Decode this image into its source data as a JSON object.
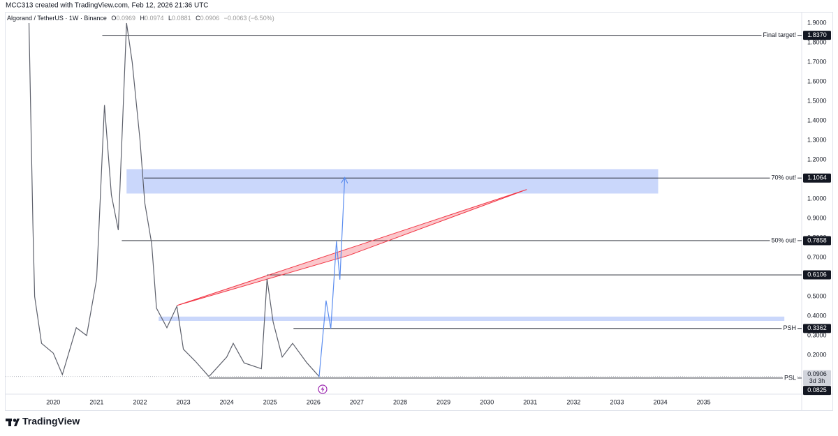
{
  "header": "MCC313 created with TradingView.com, Feb 12, 2026 21:36 UTC",
  "brand": "TradingView",
  "legend": {
    "symbol": "Algorand / TetherUS · 1W · Binance",
    "ohlc_labels": [
      "O",
      "H",
      "L",
      "C"
    ],
    "ohlc_values": [
      "0.0969",
      "0.0974",
      "0.0881",
      "0.0906"
    ],
    "change": "−0.0063 (−6.50%)"
  },
  "chart_data": {
    "type": "line",
    "xlim": [
      2018.9,
      2037.26
    ],
    "ylim": [
      0,
      1.95
    ],
    "xticks": [
      2020,
      2021,
      2022,
      2023,
      2024,
      2025,
      2026,
      2027,
      2028,
      2029,
      2030,
      2031,
      2032,
      2033,
      2034,
      2035
    ],
    "yticks": [
      {
        "value": 0.2,
        "label": "0.2000"
      },
      {
        "value": 0.3,
        "label": "0.3000"
      },
      {
        "value": 0.4,
        "label": "0.4000"
      },
      {
        "value": 0.5,
        "label": "0.5000"
      },
      {
        "value": 0.6,
        "label": "0.6000"
      },
      {
        "value": 0.7,
        "label": "0.7000"
      },
      {
        "value": 0.8,
        "label": "0.8000"
      },
      {
        "value": 0.9,
        "label": "0.9000"
      },
      {
        "value": 1.0,
        "label": "1.0000"
      },
      {
        "value": 1.1,
        "label": "1.1000"
      },
      {
        "value": 1.2,
        "label": "1.2000"
      },
      {
        "value": 1.3,
        "label": "1.3000"
      },
      {
        "value": 1.4,
        "label": "1.4000"
      },
      {
        "value": 1.5,
        "label": "1.5000"
      },
      {
        "value": 1.6,
        "label": "1.6000"
      },
      {
        "value": 1.7,
        "label": "1.7000"
      },
      {
        "value": 1.8,
        "label": "1.8000"
      },
      {
        "value": 1.9,
        "label": "1.9000"
      }
    ],
    "grid": false,
    "series": [
      {
        "color": "#5d606b",
        "x": [
          2019.44,
          2019.53,
          2019.57,
          2019.73,
          2020.0,
          2020.21,
          2020.53,
          2020.77,
          2021.0,
          2021.18,
          2021.34,
          2021.5,
          2021.69,
          2021.82,
          2022.0,
          2022.11,
          2022.27,
          2022.38,
          2022.62,
          2022.85,
          2023.0,
          2023.27,
          2023.59,
          2024.0,
          2024.15,
          2024.4,
          2024.8,
          2024.93,
          2025.07,
          2025.28,
          2025.52,
          2025.85,
          2026.13
        ],
        "values": [
          1.9,
          0.87,
          0.5,
          0.26,
          0.21,
          0.1,
          0.34,
          0.3,
          0.59,
          1.48,
          1.02,
          0.84,
          1.9,
          1.7,
          1.3,
          0.98,
          0.77,
          0.44,
          0.34,
          0.45,
          0.23,
          0.17,
          0.09,
          0.19,
          0.26,
          0.16,
          0.13,
          0.59,
          0.37,
          0.19,
          0.26,
          0.16,
          0.0906
        ]
      }
    ],
    "levels": {
      "color": "#131722",
      "names": [
        "Final target!",
        "70% out!",
        "50% out!",
        null,
        "PSH",
        "PSL"
      ],
      "values": [
        1.837,
        1.1064,
        0.7858,
        0.6106,
        0.3362,
        0.0825
      ],
      "value_labels": [
        "1.8370",
        "1.1064",
        "0.7858",
        "0.6106",
        "0.3362",
        "0.0825"
      ],
      "start": [
        2021.13,
        2022.09,
        2021.58,
        2024.93,
        2025.54,
        2023.59
      ]
    },
    "current": {
      "value": 0.0906,
      "value_label": "0.0906",
      "countdown": "3d 3h"
    },
    "zones": [
      {
        "color": "#cad7fb",
        "x": [
          2021.69,
          2033.95
        ],
        "y": [
          1.027,
          1.152
        ]
      },
      {
        "color": "#cad7fb",
        "x": [
          2022.43,
          2036.86
        ],
        "y": [
          0.375,
          0.397
        ]
      }
    ],
    "wedge": {
      "color": "#f23645",
      "x": [
        2022.85,
        2030.92,
        2026.81
      ],
      "y": [
        0.454,
        1.048,
        0.71
      ]
    },
    "projection": {
      "color": "#5b8def",
      "x": [
        2026.13,
        2026.29,
        2026.4,
        2026.53,
        2026.61,
        2026.72
      ],
      "y": [
        0.087,
        0.479,
        0.336,
        0.783,
        0.586,
        1.105
      ]
    }
  }
}
